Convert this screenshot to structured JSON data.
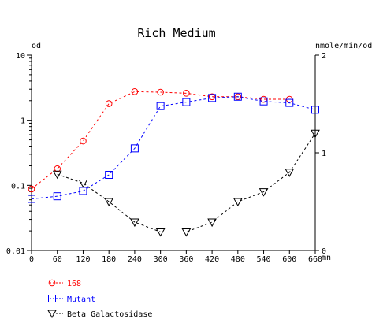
{
  "chart_data": {
    "type": "line",
    "title": "Rich Medium",
    "y_left_label": "od",
    "y_right_label": "nmole/min/od",
    "x_unit": "mn",
    "x_ticks": [
      0,
      60,
      120,
      180,
      240,
      300,
      360,
      420,
      480,
      540,
      600,
      660
    ],
    "xlim": [
      0,
      660
    ],
    "y_left_scale": "log",
    "y_left_ticks": [
      "0.01",
      "0.1",
      "1",
      "10"
    ],
    "ylim_left": [
      0.01,
      10
    ],
    "y_right_ticks": [
      "0",
      "1",
      "2"
    ],
    "ylim_right": [
      0,
      2
    ],
    "series": [
      {
        "name": "168",
        "axis": "left",
        "color": "#ff0000",
        "marker": "circle",
        "x": [
          0,
          60,
          120,
          180,
          240,
          300,
          360,
          420,
          480,
          540,
          600
        ],
        "y": [
          0.088,
          0.18,
          0.48,
          1.8,
          2.75,
          2.7,
          2.6,
          2.3,
          2.3,
          2.1,
          2.1
        ]
      },
      {
        "name": "Mutant",
        "axis": "left",
        "color": "#0000ff",
        "marker": "square",
        "x": [
          0,
          60,
          120,
          180,
          240,
          300,
          360,
          420,
          480,
          540,
          600,
          660
        ],
        "y": [
          0.062,
          0.068,
          0.082,
          0.145,
          0.37,
          1.65,
          1.9,
          2.2,
          2.3,
          1.95,
          1.85,
          1.45
        ]
      },
      {
        "name": "Beta Galactosidase",
        "axis": "right",
        "color": "#000000",
        "marker": "triangle-down",
        "x": [
          60,
          120,
          180,
          240,
          300,
          360,
          420,
          480,
          540,
          600,
          660
        ],
        "y": [
          0.78,
          0.69,
          0.5,
          0.29,
          0.19,
          0.19,
          0.29,
          0.5,
          0.6,
          0.8,
          1.2
        ]
      }
    ]
  }
}
